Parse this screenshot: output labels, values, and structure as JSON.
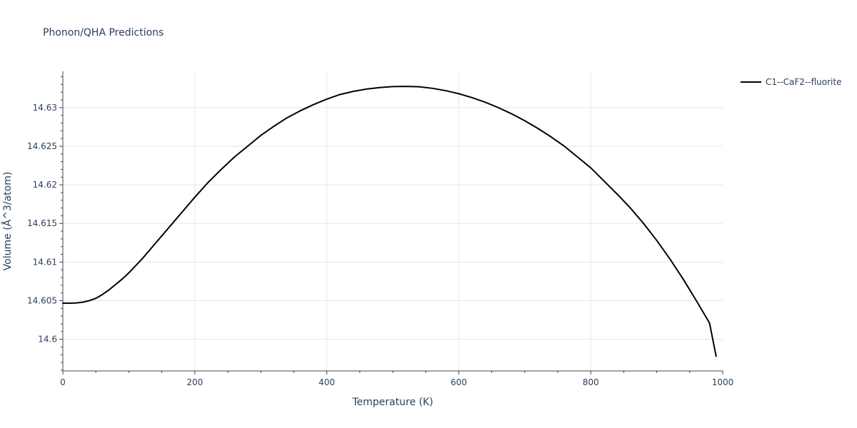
{
  "chart_data": {
    "type": "line",
    "title": "Phonon/QHA Predictions",
    "xlabel": "Temperature (K)",
    "ylabel": "Volume (Å^3/atom)",
    "xlim": [
      0,
      1000
    ],
    "ylim": [
      14.5959,
      14.6347
    ],
    "x_ticks": [
      0,
      200,
      400,
      600,
      800,
      1000
    ],
    "y_ticks": [
      14.6,
      14.605,
      14.61,
      14.615,
      14.62,
      14.625,
      14.63
    ],
    "x_tick_labels": [
      "0",
      "200",
      "400",
      "600",
      "800",
      "1000"
    ],
    "y_tick_labels": [
      "14.6",
      "14.605",
      "14.61",
      "14.615",
      "14.62",
      "14.625",
      "14.63"
    ],
    "grid": true,
    "legend_position": "top-right",
    "colors": {
      "series": "#000000",
      "grid": "#e5e5e5",
      "axis": "#444444",
      "text": "#2a3f5f"
    },
    "series": [
      {
        "name": "C1--CaF2--fluorite",
        "x": [
          0,
          10,
          20,
          30,
          40,
          50,
          60,
          70,
          80,
          90,
          100,
          110,
          120,
          130,
          140,
          150,
          160,
          170,
          180,
          190,
          200,
          220,
          240,
          260,
          280,
          300,
          320,
          340,
          360,
          380,
          400,
          420,
          440,
          460,
          480,
          500,
          520,
          540,
          560,
          580,
          600,
          620,
          640,
          660,
          680,
          700,
          720,
          740,
          760,
          780,
          800,
          820,
          840,
          860,
          880,
          900,
          920,
          940,
          960,
          980,
          990
        ],
        "y": [
          14.60468,
          14.60468,
          14.6047,
          14.6048,
          14.605,
          14.6053,
          14.6058,
          14.6064,
          14.6071,
          14.6078,
          14.6086,
          14.6095,
          14.6104,
          14.6114,
          14.6124,
          14.6134,
          14.6144,
          14.6154,
          14.6164,
          14.6174,
          14.6184,
          14.6203,
          14.622,
          14.6236,
          14.625,
          14.6264,
          14.6276,
          14.6287,
          14.6296,
          14.6304,
          14.6311,
          14.6317,
          14.6321,
          14.6324,
          14.6326,
          14.63272,
          14.63275,
          14.6327,
          14.6325,
          14.6322,
          14.6318,
          14.6313,
          14.6307,
          14.63,
          14.6292,
          14.6283,
          14.6273,
          14.6262,
          14.625,
          14.6236,
          14.6222,
          14.6205,
          14.6188,
          14.617,
          14.615,
          14.6128,
          14.6104,
          14.6078,
          14.605,
          14.6021,
          14.5978
        ]
      }
    ]
  }
}
